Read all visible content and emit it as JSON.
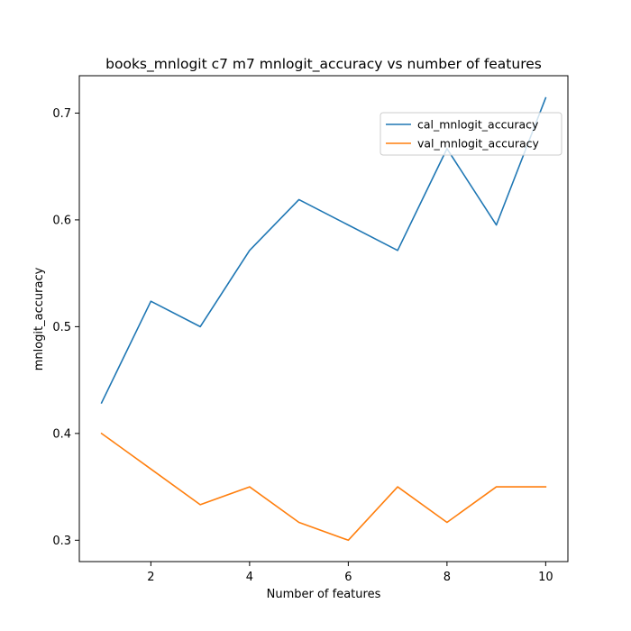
{
  "chart_data": {
    "type": "line",
    "title": "books_mnlogit c7 m7 mnlogit_accuracy vs number of features",
    "xlabel": "Number of features",
    "ylabel": "mnlogit_accuracy",
    "x": [
      1,
      2,
      3,
      4,
      5,
      6,
      7,
      8,
      9,
      10
    ],
    "xlim": [
      0.55,
      10.45
    ],
    "ylim": [
      0.28,
      0.735
    ],
    "xticks": [
      2,
      4,
      6,
      8,
      10
    ],
    "yticks": [
      0.3,
      0.4,
      0.5,
      0.6,
      0.7
    ],
    "xtick_labels": [
      "2",
      "4",
      "6",
      "8",
      "10"
    ],
    "ytick_labels": [
      "0.3",
      "0.4",
      "0.5",
      "0.6",
      "0.7"
    ],
    "grid": false,
    "legend_position": "upper right",
    "series": [
      {
        "name": "cal_mnlogit_accuracy",
        "color": "#1f77b4",
        "values": [
          0.4286,
          0.5238,
          0.5,
          0.5714,
          0.619,
          0.5952,
          0.5714,
          0.6667,
          0.5952,
          0.7143
        ]
      },
      {
        "name": "val_mnlogit_accuracy",
        "color": "#ff7f0e",
        "values": [
          0.4,
          0.3667,
          0.3333,
          0.35,
          0.3167,
          0.3,
          0.35,
          0.3167,
          0.35,
          0.35
        ]
      }
    ]
  }
}
